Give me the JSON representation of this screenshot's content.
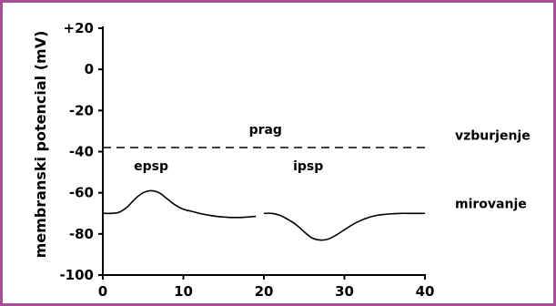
{
  "chart_data": {
    "type": "line",
    "ylabel": "membranski potencial (mV)",
    "xlabel": "",
    "xlim": [
      0,
      40
    ],
    "ylim": [
      -100,
      20
    ],
    "x_ticks": [
      "0",
      "10",
      "20",
      "30",
      "40"
    ],
    "y_ticks": [
      "+20",
      "0",
      "-20",
      "-40",
      "-60",
      "-80",
      "-100"
    ],
    "threshold": {
      "label": "prag",
      "value": -38,
      "style": "dashed"
    },
    "series": [
      {
        "x": [
          0,
          1,
          2,
          3,
          4,
          5,
          6,
          7,
          8,
          9,
          10,
          11,
          12,
          13,
          14,
          15,
          16,
          17,
          18,
          19
        ],
        "y": [
          -70,
          -70,
          -69.5,
          -67,
          -63,
          -60,
          -59,
          -60,
          -63,
          -66,
          -68,
          -69,
          -70,
          -70.8,
          -71.4,
          -71.8,
          -72,
          -72,
          -71.8,
          -71.5
        ]
      },
      {
        "x": [
          20,
          21,
          22,
          23,
          24,
          25,
          26,
          27,
          28,
          29,
          30,
          31,
          32,
          33,
          34,
          35,
          36,
          37,
          38,
          39,
          40
        ],
        "y": [
          -70,
          -70,
          -71,
          -73,
          -75.5,
          -79,
          -82,
          -83,
          -82.5,
          -80.5,
          -78,
          -75.5,
          -73.5,
          -72,
          -71,
          -70.5,
          -70.2,
          -70,
          -70,
          -70,
          -70
        ]
      }
    ],
    "annotations": [
      {
        "text": "epsp",
        "x": 6,
        "y": -49
      },
      {
        "text": "ipsp",
        "x": 25.5,
        "y": -49
      }
    ],
    "right_labels": [
      {
        "text": "vzburjenje",
        "y": -37
      },
      {
        "text": "mirovanje",
        "y": -70
      }
    ]
  }
}
